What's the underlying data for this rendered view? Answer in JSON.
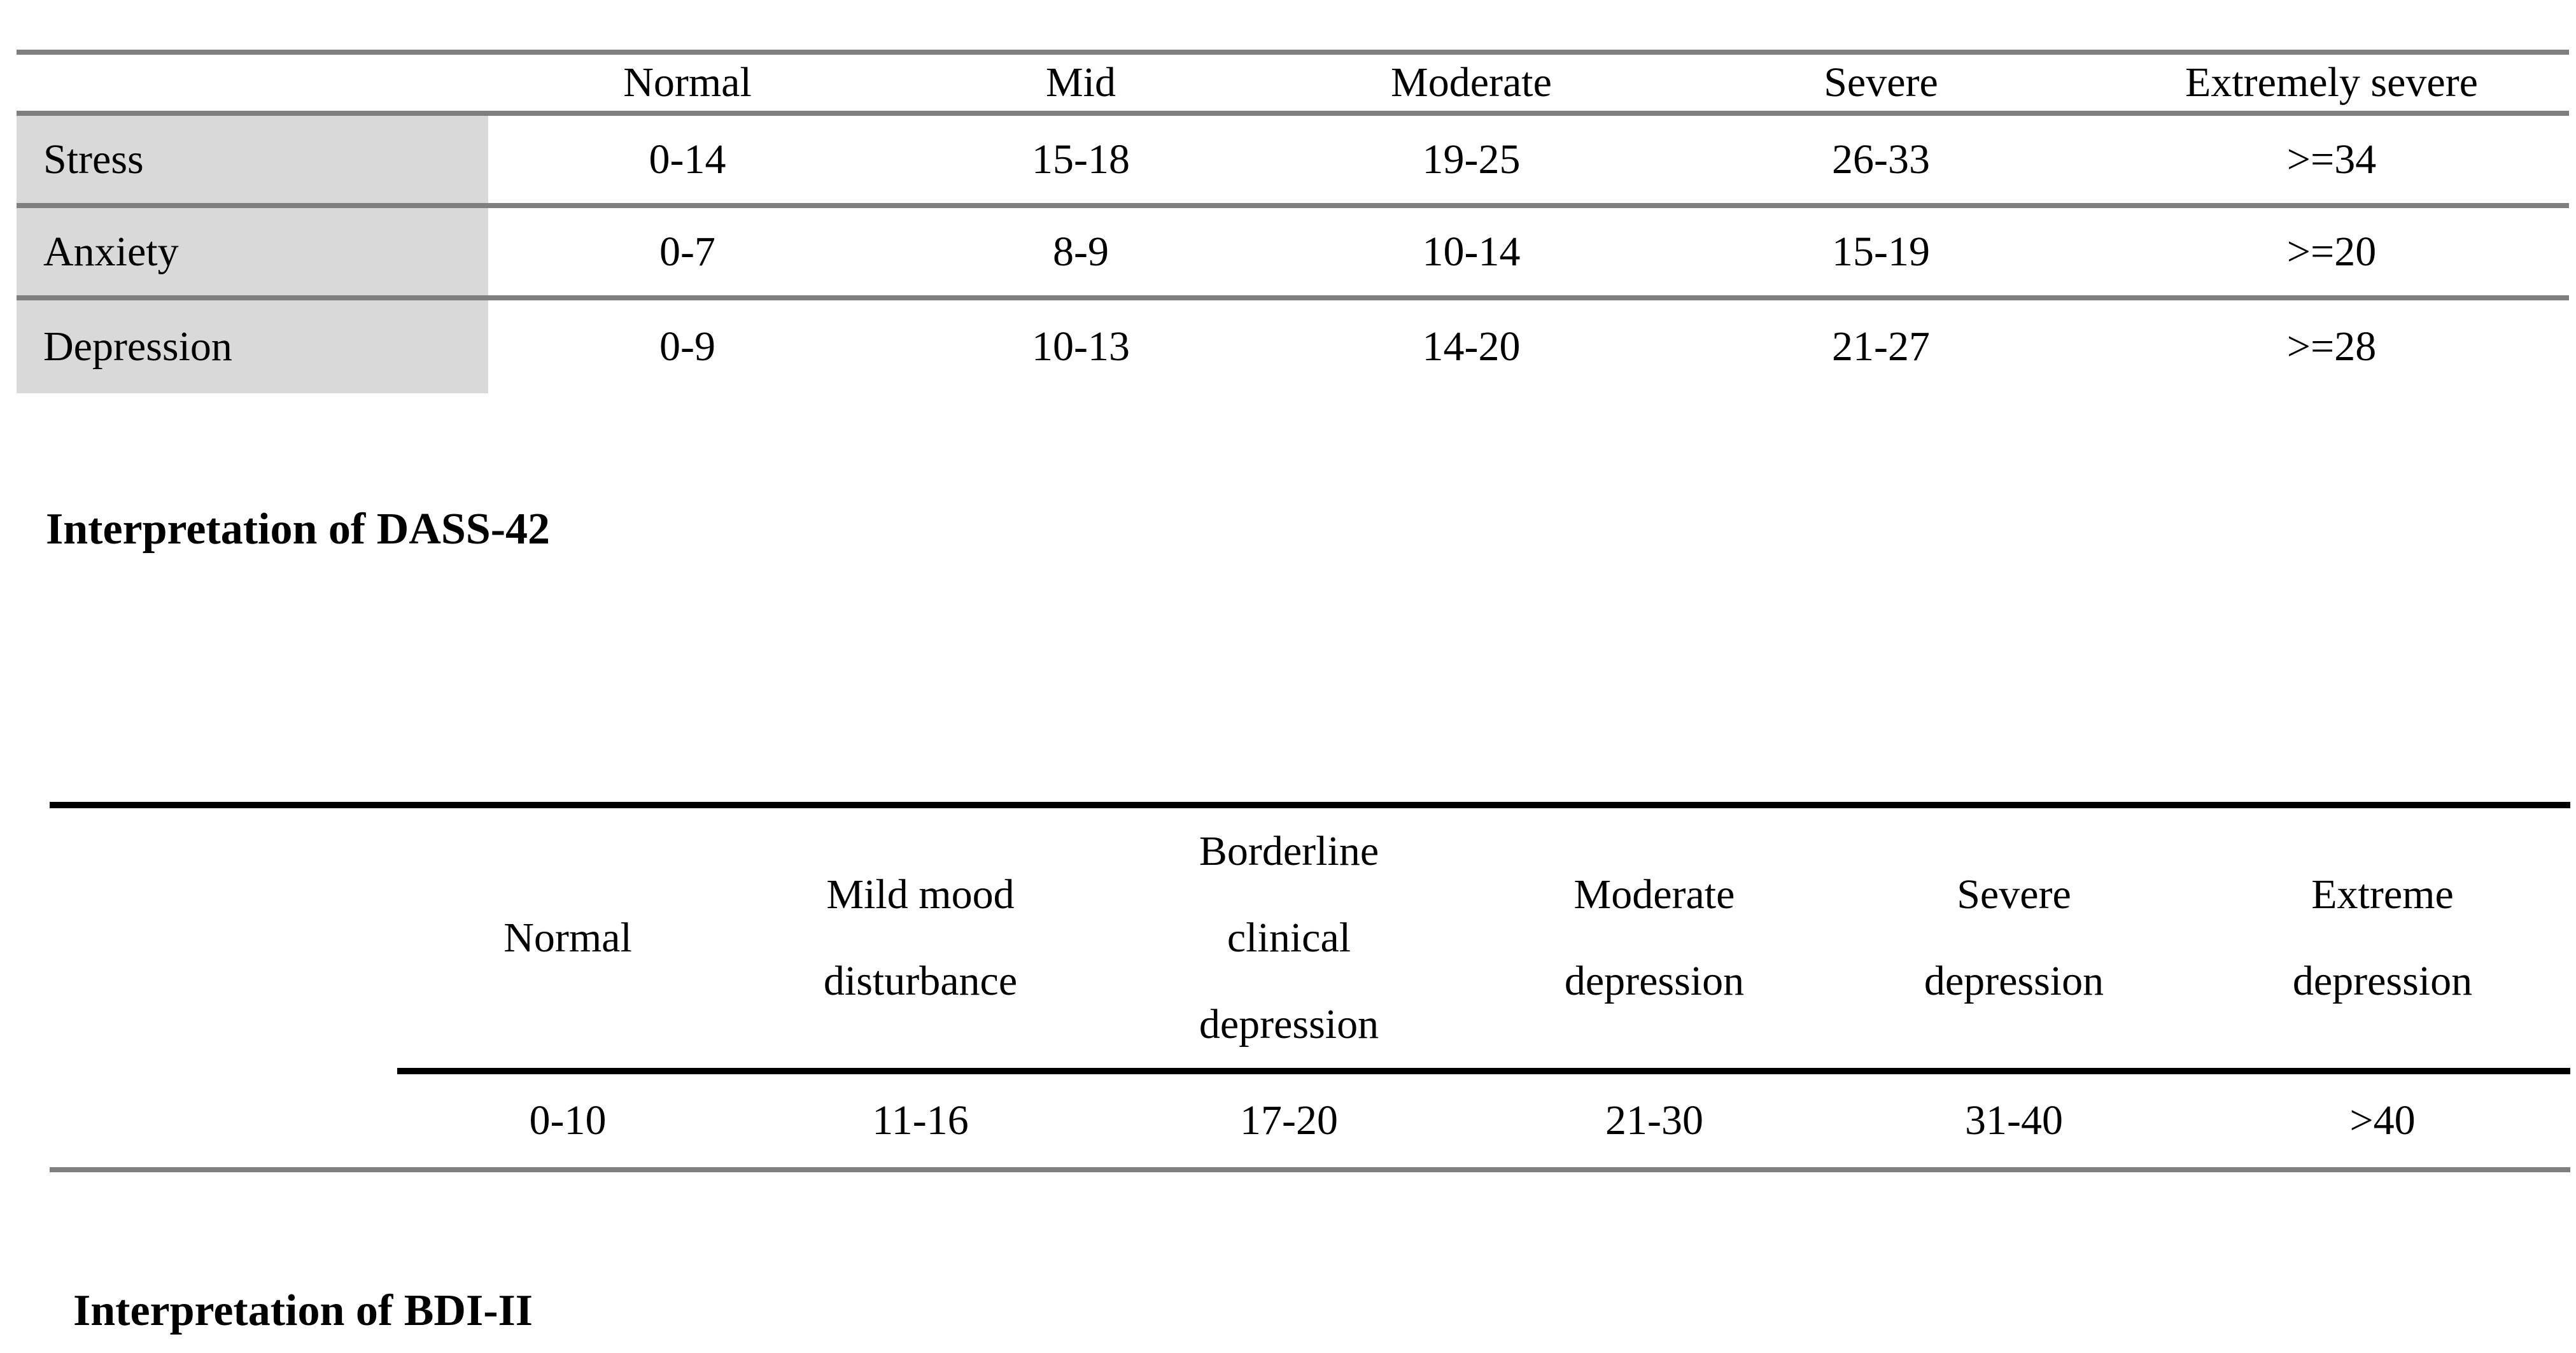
{
  "colors": {
    "background": "#ffffff",
    "shaded_cell": "#d9d9d9",
    "gray_rule": "#7f7f7f",
    "black_rule": "#000000",
    "text": "#000000"
  },
  "table_dass": {
    "caption": "Interpretation of DASS-42",
    "columns": [
      "",
      "Normal",
      "Mid",
      "Moderate",
      "Severe",
      "Extremely severe"
    ],
    "rows": [
      {
        "label": "Stress",
        "values": [
          "0-14",
          "15-18",
          "19-25",
          "26-33",
          ">=34"
        ]
      },
      {
        "label": "Anxiety",
        "values": [
          "0-7",
          "8-9",
          "10-14",
          "15-19",
          ">=20"
        ]
      },
      {
        "label": "Depression",
        "values": [
          "0-9",
          "10-13",
          "14-20",
          "21-27",
          ">=28"
        ]
      }
    ]
  },
  "table_bdi": {
    "caption": "Interpretation of BDI-II",
    "columns": [
      "",
      "Normal",
      "Mild mood disturbance",
      "Borderline clinical depression",
      "Moderate depression",
      "Severe depression",
      "Extreme depression"
    ],
    "values": [
      "0-10",
      "11-16",
      "17-20",
      "21-30",
      "31-40",
      ">40"
    ]
  }
}
